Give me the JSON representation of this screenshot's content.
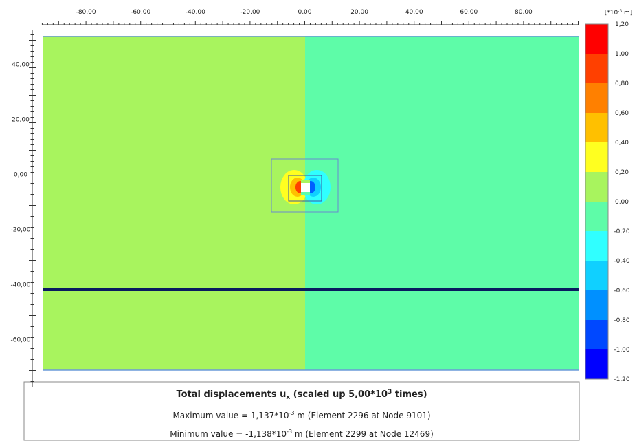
{
  "plot": {
    "x_labels": [
      "-80,00",
      "-60,00",
      "-40,00",
      "-20,00",
      "0,00",
      "20,00",
      "40,00",
      "60,00",
      "80,00"
    ],
    "y_labels": [
      "40,00",
      "20,00",
      "0,00",
      "-20,00",
      "-40,00",
      "-60,00"
    ],
    "left_color": "#a8f45e",
    "right_color": "#5efca8"
  },
  "legend": {
    "unit": [
      "[*10",
      "-3",
      " m]"
    ],
    "labels": [
      "1,20",
      "1,00",
      "0,80",
      "0,60",
      "0,40",
      "0,20",
      "0,00",
      "-0,20",
      "-0,40",
      "-0,60",
      "-0,80",
      "-1,00",
      "-1,20"
    ],
    "colors": [
      "#ff0000",
      "#ff4000",
      "#ff8000",
      "#ffc000",
      "#ffff20",
      "#a8f45e",
      "#5efca8",
      "#30ffff",
      "#10d0ff",
      "#0090ff",
      "#0048ff",
      "#0000ff"
    ]
  },
  "caption": {
    "title": [
      "Total displacements u",
      "x",
      " (scaled up 5,00*10",
      "3",
      " times)"
    ],
    "max": [
      "Maximum value = 1,137*10",
      "-3",
      " m (Element 2296 at Node 9101)"
    ],
    "min": [
      "Minimum value = -1,138*10",
      "-3",
      " m (Element 2299 at Node 12469)"
    ]
  }
}
